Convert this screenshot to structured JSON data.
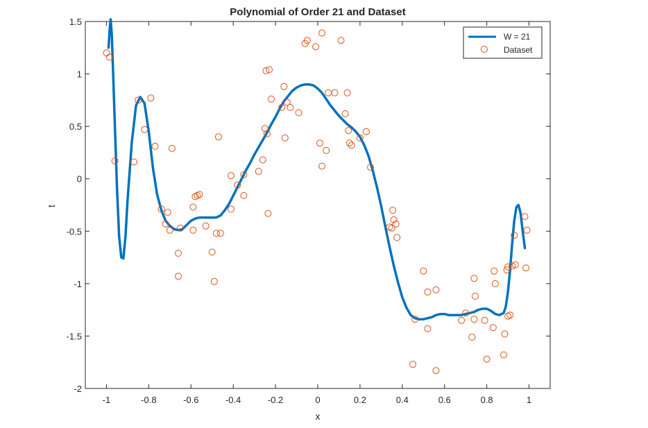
{
  "chart_data": {
    "type": "line",
    "title": "Polynomial of Order 21 and Dataset",
    "xlabel": "x",
    "ylabel": "t",
    "xlim": [
      -1.1,
      1.1
    ],
    "ylim": [
      -2,
      1.5
    ],
    "xticks": [
      -1,
      -0.8,
      -0.6,
      -0.4,
      -0.2,
      0,
      0.2,
      0.4,
      0.6,
      0.8,
      1
    ],
    "xtick_labels": [
      "-1",
      "-0.8",
      "-0.6",
      "-0.4",
      "-0.2",
      "0",
      "0.2",
      "0.4",
      "0.6",
      "0.8",
      "1"
    ],
    "yticks": [
      -2,
      -1.5,
      -1,
      -0.5,
      0,
      0.5,
      1,
      1.5
    ],
    "ytick_labels": [
      "-2",
      "-1.5",
      "-1",
      "-0.5",
      "0",
      "0.5",
      "1",
      "1.5"
    ],
    "grid": false,
    "legend_position": "top-right",
    "series": [
      {
        "name": "W = 21",
        "kind": "line",
        "color": "#0072BD",
        "x": [
          -0.99,
          -0.985,
          -0.98,
          -0.975,
          -0.97,
          -0.96,
          -0.95,
          -0.94,
          -0.93,
          -0.92,
          -0.91,
          -0.9,
          -0.88,
          -0.86,
          -0.84,
          -0.82,
          -0.8,
          -0.78,
          -0.76,
          -0.74,
          -0.72,
          -0.7,
          -0.68,
          -0.66,
          -0.64,
          -0.62,
          -0.6,
          -0.58,
          -0.56,
          -0.54,
          -0.52,
          -0.5,
          -0.48,
          -0.46,
          -0.44,
          -0.42,
          -0.4,
          -0.38,
          -0.36,
          -0.34,
          -0.32,
          -0.3,
          -0.28,
          -0.26,
          -0.24,
          -0.22,
          -0.2,
          -0.18,
          -0.16,
          -0.14,
          -0.12,
          -0.1,
          -0.08,
          -0.06,
          -0.04,
          -0.02,
          0,
          0.02,
          0.04,
          0.06,
          0.08,
          0.1,
          0.12,
          0.14,
          0.16,
          0.18,
          0.2,
          0.22,
          0.24,
          0.26,
          0.28,
          0.3,
          0.32,
          0.34,
          0.36,
          0.38,
          0.4,
          0.42,
          0.44,
          0.46,
          0.48,
          0.5,
          0.52,
          0.54,
          0.56,
          0.58,
          0.6,
          0.62,
          0.64,
          0.66,
          0.68,
          0.7,
          0.72,
          0.74,
          0.76,
          0.78,
          0.8,
          0.82,
          0.84,
          0.86,
          0.88,
          0.89,
          0.9,
          0.91,
          0.92,
          0.93,
          0.94,
          0.95,
          0.96,
          0.97,
          0.98
        ],
        "y": [
          1.25,
          1.42,
          1.52,
          1.38,
          1.1,
          0.5,
          -0.1,
          -0.55,
          -0.75,
          -0.76,
          -0.55,
          -0.2,
          0.35,
          0.7,
          0.78,
          0.72,
          0.45,
          0.1,
          -0.15,
          -0.3,
          -0.4,
          -0.45,
          -0.48,
          -0.49,
          -0.48,
          -0.44,
          -0.4,
          -0.38,
          -0.37,
          -0.37,
          -0.37,
          -0.37,
          -0.37,
          -0.35,
          -0.3,
          -0.24,
          -0.16,
          -0.08,
          0.0,
          0.08,
          0.15,
          0.23,
          0.3,
          0.37,
          0.44,
          0.52,
          0.59,
          0.67,
          0.74,
          0.79,
          0.84,
          0.87,
          0.89,
          0.9,
          0.9,
          0.89,
          0.86,
          0.82,
          0.76,
          0.7,
          0.65,
          0.6,
          0.56,
          0.52,
          0.49,
          0.45,
          0.4,
          0.32,
          0.22,
          0.08,
          -0.08,
          -0.26,
          -0.46,
          -0.65,
          -0.83,
          -0.99,
          -1.13,
          -1.23,
          -1.3,
          -1.33,
          -1.34,
          -1.34,
          -1.33,
          -1.32,
          -1.3,
          -1.29,
          -1.29,
          -1.3,
          -1.3,
          -1.3,
          -1.3,
          -1.29,
          -1.28,
          -1.27,
          -1.25,
          -1.24,
          -1.24,
          -1.26,
          -1.29,
          -1.3,
          -1.28,
          -1.22,
          -1.08,
          -0.88,
          -0.62,
          -0.4,
          -0.27,
          -0.25,
          -0.33,
          -0.5,
          -0.66
        ]
      },
      {
        "name": "Dataset",
        "kind": "scatter",
        "color": "#D95319",
        "points": [
          [
            -1.0,
            1.2
          ],
          [
            -0.985,
            1.16
          ],
          [
            -0.96,
            0.17
          ],
          [
            -0.87,
            0.16
          ],
          [
            -0.85,
            0.75
          ],
          [
            -0.82,
            0.47
          ],
          [
            -0.79,
            0.77
          ],
          [
            -0.77,
            0.31
          ],
          [
            -0.74,
            -0.29
          ],
          [
            -0.72,
            -0.43
          ],
          [
            -0.71,
            -0.32
          ],
          [
            -0.7,
            -0.49
          ],
          [
            -0.69,
            0.29
          ],
          [
            -0.66,
            -0.71
          ],
          [
            -0.66,
            -0.93
          ],
          [
            -0.65,
            -0.47
          ],
          [
            -0.59,
            -0.27
          ],
          [
            -0.59,
            -0.49
          ],
          [
            -0.58,
            -0.17
          ],
          [
            -0.57,
            -0.16
          ],
          [
            -0.56,
            -0.15
          ],
          [
            -0.53,
            -0.45
          ],
          [
            -0.5,
            -0.7
          ],
          [
            -0.49,
            -0.98
          ],
          [
            -0.48,
            -0.52
          ],
          [
            -0.47,
            0.4
          ],
          [
            -0.46,
            -0.52
          ],
          [
            -0.41,
            -0.29
          ],
          [
            -0.41,
            0.03
          ],
          [
            -0.38,
            -0.06
          ],
          [
            -0.35,
            0.04
          ],
          [
            -0.35,
            -0.16
          ],
          [
            -0.28,
            0.07
          ],
          [
            -0.26,
            0.18
          ],
          [
            -0.25,
            0.48
          ],
          [
            -0.245,
            1.03
          ],
          [
            -0.24,
            0.43
          ],
          [
            -0.235,
            -0.33
          ],
          [
            -0.23,
            1.04
          ],
          [
            -0.22,
            0.76
          ],
          [
            -0.17,
            0.68
          ],
          [
            -0.16,
            0.88
          ],
          [
            -0.155,
            0.39
          ],
          [
            -0.145,
            0.73
          ],
          [
            -0.13,
            0.68
          ],
          [
            -0.09,
            0.63
          ],
          [
            -0.06,
            1.29
          ],
          [
            -0.05,
            1.32
          ],
          [
            -0.01,
            1.26
          ],
          [
            0.01,
            0.34
          ],
          [
            0.02,
            1.39
          ],
          [
            0.02,
            0.12
          ],
          [
            0.04,
            0.27
          ],
          [
            0.05,
            0.82
          ],
          [
            0.08,
            0.82
          ],
          [
            0.11,
            1.32
          ],
          [
            0.13,
            0.62
          ],
          [
            0.14,
            0.82
          ],
          [
            0.145,
            0.46
          ],
          [
            0.15,
            0.34
          ],
          [
            0.16,
            0.32
          ],
          [
            0.2,
            0.39
          ],
          [
            0.23,
            0.45
          ],
          [
            0.25,
            0.11
          ],
          [
            0.34,
            -0.46
          ],
          [
            0.35,
            -0.47
          ],
          [
            0.355,
            -0.3
          ],
          [
            0.36,
            -0.39
          ],
          [
            0.37,
            -0.43
          ],
          [
            0.375,
            -0.56
          ],
          [
            0.45,
            -1.77
          ],
          [
            0.46,
            -1.34
          ],
          [
            0.5,
            -0.88
          ],
          [
            0.52,
            -1.43
          ],
          [
            0.52,
            -1.08
          ],
          [
            0.56,
            -1.06
          ],
          [
            0.56,
            -1.83
          ],
          [
            0.68,
            -1.35
          ],
          [
            0.7,
            -1.28
          ],
          [
            0.73,
            -1.51
          ],
          [
            0.74,
            -1.34
          ],
          [
            0.74,
            -0.95
          ],
          [
            0.745,
            -1.12
          ],
          [
            0.79,
            -1.35
          ],
          [
            0.8,
            -1.72
          ],
          [
            0.83,
            -1.42
          ],
          [
            0.835,
            -0.88
          ],
          [
            0.84,
            -1.0
          ],
          [
            0.88,
            -1.68
          ],
          [
            0.885,
            -1.48
          ],
          [
            0.895,
            -0.87
          ],
          [
            0.9,
            -1.31
          ],
          [
            0.9,
            -0.84
          ],
          [
            0.91,
            -1.3
          ],
          [
            0.92,
            -0.83
          ],
          [
            0.93,
            -0.54
          ],
          [
            0.935,
            -0.82
          ],
          [
            0.98,
            -0.36
          ],
          [
            0.985,
            -0.85
          ],
          [
            0.99,
            -0.49
          ]
        ]
      }
    ]
  }
}
